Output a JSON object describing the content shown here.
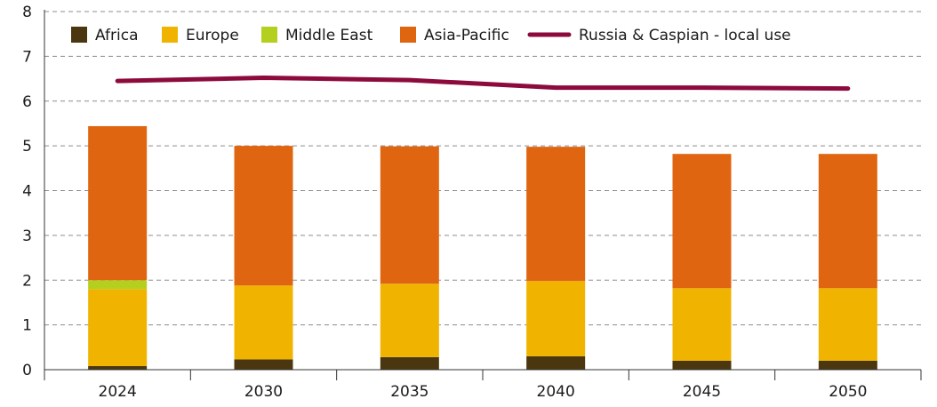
{
  "chart_data": {
    "type": "bar",
    "stacked": true,
    "categories": [
      "2024",
      "2030",
      "2035",
      "2040",
      "2045",
      "2050"
    ],
    "series": [
      {
        "name": "Africa",
        "type": "bar",
        "color": "#4a3710",
        "values": [
          0.08,
          0.23,
          0.28,
          0.3,
          0.2,
          0.2
        ]
      },
      {
        "name": "Europe",
        "type": "bar",
        "color": "#f0b400",
        "values": [
          1.72,
          1.65,
          1.64,
          1.68,
          1.62,
          1.62
        ]
      },
      {
        "name": "Middle East",
        "type": "bar",
        "color": "#b5cf1e",
        "values": [
          0.2,
          0.0,
          0.0,
          0.0,
          0.0,
          0.0
        ]
      },
      {
        "name": "Asia-Pacific",
        "type": "bar",
        "color": "#e06510",
        "values": [
          3.44,
          3.12,
          3.07,
          3.0,
          3.0,
          3.0
        ]
      },
      {
        "name": "Russia & Caspian - local use",
        "type": "line",
        "color": "#8c0a3c",
        "values": [
          6.45,
          6.52,
          6.47,
          6.3,
          6.3,
          6.28
        ]
      }
    ],
    "ylim": [
      0,
      8
    ],
    "yticks": [
      0,
      1,
      2,
      3,
      4,
      5,
      6,
      7,
      8
    ],
    "grid": true,
    "legend": "top"
  }
}
